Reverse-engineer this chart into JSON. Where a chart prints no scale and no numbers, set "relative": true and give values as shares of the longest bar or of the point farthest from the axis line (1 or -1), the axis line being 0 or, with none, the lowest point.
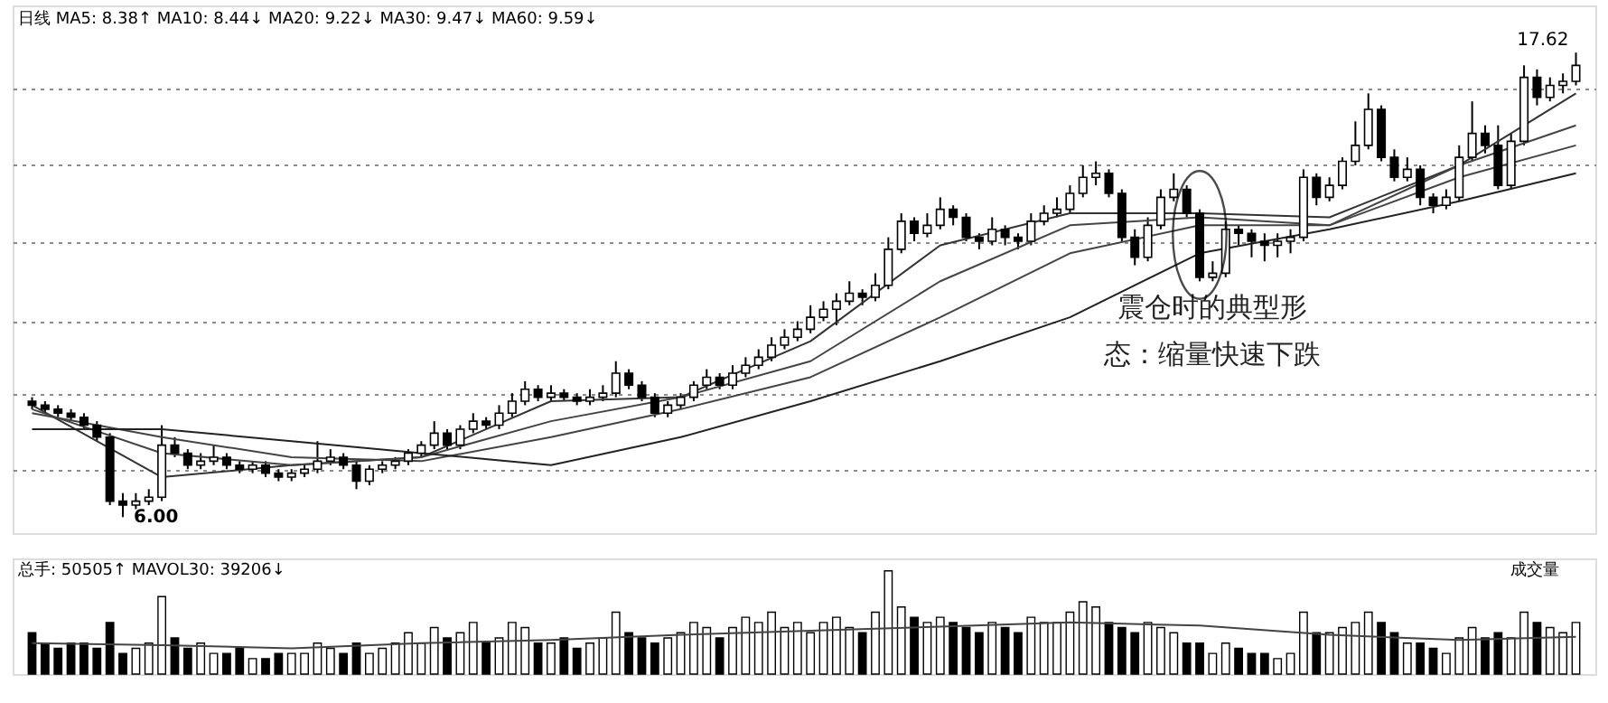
{
  "chart_data": [
    {
      "type": "candlestick",
      "color": "#000000",
      "categories": [
        null,
        null,
        null,
        null,
        null,
        null,
        null,
        null,
        null,
        null,
        null,
        null,
        null,
        null,
        null,
        null,
        null,
        null,
        null,
        null,
        null,
        null,
        null,
        null,
        null,
        null,
        null,
        null,
        null,
        null,
        null,
        null,
        null,
        null,
        null,
        null,
        null,
        null,
        null,
        null,
        null,
        null,
        null,
        null,
        null,
        null,
        null,
        null,
        null,
        null,
        null,
        null,
        null,
        null,
        null,
        null,
        null,
        null,
        null,
        null,
        null,
        null,
        null,
        null,
        null,
        null,
        null,
        null,
        null,
        null,
        null,
        null,
        null,
        null,
        null,
        null,
        null,
        null,
        null,
        null,
        null,
        null,
        null,
        null,
        null,
        null,
        null,
        null,
        null,
        null,
        null,
        null,
        null,
        null,
        null,
        null,
        null,
        null,
        null,
        null,
        null,
        null,
        null,
        null,
        null,
        null,
        null,
        null,
        null,
        null,
        null,
        null,
        null,
        null,
        null,
        null,
        null,
        null,
        null,
        null
      ],
      "ohlc": [
        [
          8.9,
          9.0,
          8.7,
          8.8
        ],
        [
          8.8,
          8.9,
          8.6,
          8.7
        ],
        [
          8.7,
          8.8,
          8.5,
          8.6
        ],
        [
          8.6,
          8.7,
          8.4,
          8.5
        ],
        [
          8.5,
          8.6,
          8.2,
          8.3
        ],
        [
          8.3,
          8.4,
          7.9,
          8.0
        ],
        [
          8.0,
          8.1,
          6.3,
          6.4
        ],
        [
          6.4,
          6.6,
          6.0,
          6.3
        ],
        [
          6.3,
          6.6,
          6.2,
          6.4
        ],
        [
          6.4,
          6.7,
          6.3,
          6.5
        ],
        [
          6.5,
          8.3,
          6.4,
          7.8
        ],
        [
          7.8,
          8.0,
          7.5,
          7.6
        ],
        [
          7.6,
          7.7,
          7.2,
          7.3
        ],
        [
          7.3,
          7.6,
          7.2,
          7.4
        ],
        [
          7.4,
          7.8,
          7.3,
          7.5
        ],
        [
          7.5,
          7.6,
          7.2,
          7.3
        ],
        [
          7.3,
          7.4,
          7.1,
          7.2
        ],
        [
          7.2,
          7.4,
          7.1,
          7.3
        ],
        [
          7.3,
          7.4,
          7.0,
          7.1
        ],
        [
          7.1,
          7.2,
          6.9,
          7.0
        ],
        [
          7.0,
          7.2,
          6.9,
          7.1
        ],
        [
          7.1,
          7.3,
          7.0,
          7.2
        ],
        [
          7.2,
          7.9,
          7.1,
          7.4
        ],
        [
          7.4,
          7.7,
          7.3,
          7.5
        ],
        [
          7.5,
          7.6,
          7.2,
          7.3
        ],
        [
          7.3,
          7.4,
          6.7,
          6.9
        ],
        [
          6.9,
          7.3,
          6.8,
          7.2
        ],
        [
          7.2,
          7.4,
          7.1,
          7.3
        ],
        [
          7.3,
          7.5,
          7.2,
          7.4
        ],
        [
          7.4,
          7.7,
          7.3,
          7.6
        ],
        [
          7.6,
          7.9,
          7.5,
          7.8
        ],
        [
          7.8,
          8.4,
          7.7,
          8.1
        ],
        [
          8.1,
          8.2,
          7.7,
          7.8
        ],
        [
          7.8,
          8.3,
          7.7,
          8.2
        ],
        [
          8.2,
          8.6,
          8.1,
          8.4
        ],
        [
          8.4,
          8.5,
          8.2,
          8.3
        ],
        [
          8.3,
          8.8,
          8.2,
          8.6
        ],
        [
          8.6,
          9.1,
          8.5,
          8.9
        ],
        [
          8.9,
          9.4,
          8.8,
          9.2
        ],
        [
          9.2,
          9.3,
          8.9,
          9.0
        ],
        [
          9.0,
          9.3,
          8.9,
          9.1
        ],
        [
          9.1,
          9.2,
          8.9,
          9.0
        ],
        [
          9.0,
          9.1,
          8.8,
          8.9
        ],
        [
          8.9,
          9.2,
          8.8,
          9.0
        ],
        [
          9.0,
          9.3,
          8.9,
          9.1
        ],
        [
          9.1,
          9.9,
          9.0,
          9.6
        ],
        [
          9.6,
          9.7,
          9.2,
          9.3
        ],
        [
          9.3,
          9.4,
          8.9,
          9.0
        ],
        [
          9.0,
          9.1,
          8.5,
          8.6
        ],
        [
          8.6,
          8.9,
          8.5,
          8.8
        ],
        [
          8.8,
          9.1,
          8.7,
          9.0
        ],
        [
          9.0,
          9.4,
          8.9,
          9.3
        ],
        [
          9.3,
          9.7,
          9.2,
          9.5
        ],
        [
          9.5,
          9.6,
          9.2,
          9.3
        ],
        [
          9.3,
          9.8,
          9.2,
          9.6
        ],
        [
          9.6,
          10.0,
          9.5,
          9.8
        ],
        [
          9.8,
          10.2,
          9.7,
          10.0
        ],
        [
          10.0,
          10.5,
          9.9,
          10.3
        ],
        [
          10.3,
          10.7,
          10.2,
          10.5
        ],
        [
          10.5,
          10.9,
          10.4,
          10.7
        ],
        [
          10.7,
          11.3,
          10.6,
          11.0
        ],
        [
          11.0,
          11.4,
          10.9,
          11.2
        ],
        [
          11.2,
          11.6,
          10.8,
          11.4
        ],
        [
          11.4,
          11.9,
          11.3,
          11.6
        ],
        [
          11.6,
          11.7,
          11.3,
          11.5
        ],
        [
          11.5,
          12.1,
          11.4,
          11.8
        ],
        [
          11.8,
          13.0,
          11.7,
          12.7
        ],
        [
          12.7,
          13.6,
          12.6,
          13.4
        ],
        [
          13.4,
          13.5,
          12.9,
          13.1
        ],
        [
          13.1,
          13.6,
          13.0,
          13.3
        ],
        [
          13.3,
          14.0,
          13.2,
          13.7
        ],
        [
          13.7,
          13.8,
          13.3,
          13.5
        ],
        [
          13.5,
          13.6,
          12.9,
          13.0
        ],
        [
          13.0,
          13.1,
          12.7,
          12.9
        ],
        [
          12.9,
          13.5,
          12.8,
          13.2
        ],
        [
          13.2,
          13.3,
          12.8,
          13.0
        ],
        [
          13.0,
          13.1,
          12.7,
          12.9
        ],
        [
          12.9,
          13.6,
          12.8,
          13.4
        ],
        [
          13.4,
          13.8,
          13.3,
          13.6
        ],
        [
          13.6,
          14.0,
          13.5,
          13.7
        ],
        [
          13.7,
          14.3,
          13.6,
          14.1
        ],
        [
          14.1,
          14.8,
          14.0,
          14.5
        ],
        [
          14.5,
          14.9,
          14.3,
          14.6
        ],
        [
          14.6,
          14.7,
          14.0,
          14.1
        ],
        [
          14.1,
          14.2,
          12.9,
          13.0
        ],
        [
          13.0,
          13.2,
          12.3,
          12.5
        ],
        [
          12.5,
          13.5,
          12.4,
          13.3
        ],
        [
          13.3,
          14.2,
          13.2,
          14.0
        ],
        [
          14.0,
          14.6,
          13.9,
          14.2
        ],
        [
          14.2,
          14.3,
          13.5,
          13.6
        ],
        [
          13.6,
          13.7,
          11.9,
          12.0
        ],
        [
          12.0,
          12.4,
          11.9,
          12.1
        ],
        [
          12.1,
          13.4,
          12.0,
          13.2
        ],
        [
          13.2,
          13.3,
          12.8,
          13.1
        ],
        [
          13.1,
          13.2,
          12.5,
          12.9
        ],
        [
          12.9,
          13.1,
          12.4,
          12.8
        ],
        [
          12.8,
          13.1,
          12.5,
          12.9
        ],
        [
          12.9,
          13.2,
          12.6,
          13.0
        ],
        [
          13.0,
          14.7,
          12.9,
          14.5
        ],
        [
          14.5,
          14.6,
          13.8,
          14.0
        ],
        [
          14.0,
          14.5,
          13.9,
          14.3
        ],
        [
          14.3,
          15.0,
          14.2,
          14.9
        ],
        [
          14.9,
          15.9,
          14.8,
          15.3
        ],
        [
          15.3,
          16.6,
          15.2,
          16.2
        ],
        [
          16.2,
          16.3,
          14.9,
          15.0
        ],
        [
          15.0,
          15.2,
          14.4,
          14.5
        ],
        [
          14.5,
          15.0,
          14.4,
          14.7
        ],
        [
          14.7,
          14.8,
          13.8,
          14.0
        ],
        [
          14.0,
          14.1,
          13.6,
          13.8
        ],
        [
          13.8,
          14.2,
          13.7,
          14.0
        ],
        [
          14.0,
          15.3,
          13.9,
          15.0
        ],
        [
          15.0,
          16.4,
          14.9,
          15.6
        ],
        [
          15.6,
          15.8,
          15.1,
          15.3
        ],
        [
          15.3,
          15.8,
          14.2,
          14.3
        ],
        [
          14.3,
          15.6,
          14.2,
          15.4
        ],
        [
          15.4,
          17.3,
          15.3,
          17.0
        ],
        [
          17.0,
          17.2,
          16.3,
          16.5
        ],
        [
          16.5,
          17.0,
          16.4,
          16.8
        ],
        [
          16.8,
          17.1,
          16.6,
          16.9
        ],
        [
          16.9,
          17.62,
          16.8,
          17.3
        ]
      ],
      "series": [
        {
          "type": "line",
          "color": "#333333",
          "values": [
            8.8,
            null,
            null,
            null,
            null,
            null,
            null,
            null,
            null,
            null,
            7.0,
            null,
            null,
            null,
            null,
            null,
            null,
            null,
            null,
            null,
            7.3,
            null,
            null,
            null,
            null,
            null,
            null,
            null,
            null,
            null,
            7.5,
            null,
            null,
            null,
            null,
            null,
            null,
            null,
            null,
            null,
            8.9,
            null,
            null,
            null,
            null,
            null,
            null,
            null,
            null,
            null,
            9.0,
            null,
            null,
            null,
            null,
            null,
            null,
            null,
            null,
            null,
            10.4,
            null,
            null,
            null,
            null,
            null,
            null,
            null,
            null,
            null,
            12.8,
            null,
            null,
            null,
            null,
            null,
            null,
            null,
            null,
            null,
            13.6,
            null,
            null,
            null,
            null,
            null,
            null,
            null,
            null,
            null,
            13.6,
            null,
            null,
            null,
            null,
            null,
            null,
            null,
            null,
            null,
            13.5,
            null,
            null,
            null,
            null,
            null,
            null,
            null,
            null,
            null,
            14.8,
            null,
            null,
            null,
            null,
            null,
            null,
            null,
            null,
            16.6
          ]
        },
        {
          "type": "line",
          "color": "#444444",
          "values": [
            8.7,
            null,
            null,
            null,
            null,
            null,
            null,
            null,
            null,
            null,
            7.6,
            null,
            null,
            null,
            null,
            null,
            null,
            null,
            null,
            null,
            7.3,
            null,
            null,
            null,
            null,
            null,
            null,
            null,
            null,
            null,
            7.5,
            null,
            null,
            null,
            null,
            null,
            null,
            null,
            null,
            null,
            8.4,
            null,
            null,
            null,
            null,
            null,
            null,
            null,
            null,
            null,
            9.0,
            null,
            null,
            null,
            null,
            null,
            null,
            null,
            null,
            null,
            9.9,
            null,
            null,
            null,
            null,
            null,
            null,
            null,
            null,
            null,
            11.9,
            null,
            null,
            null,
            null,
            null,
            null,
            null,
            null,
            null,
            13.3,
            null,
            null,
            null,
            null,
            null,
            null,
            null,
            null,
            null,
            13.5,
            null,
            null,
            null,
            null,
            null,
            null,
            null,
            null,
            null,
            13.3,
            null,
            null,
            null,
            null,
            null,
            null,
            null,
            null,
            null,
            14.8,
            null,
            null,
            null,
            null,
            null,
            null,
            null,
            null,
            15.8
          ]
        },
        {
          "type": "line",
          "color": "#444444",
          "values": [
            8.6,
            null,
            null,
            null,
            null,
            null,
            null,
            null,
            null,
            null,
            8.0,
            null,
            null,
            null,
            null,
            null,
            null,
            null,
            null,
            null,
            7.5,
            null,
            null,
            null,
            null,
            null,
            null,
            null,
            null,
            null,
            7.4,
            null,
            null,
            null,
            null,
            null,
            null,
            null,
            null,
            null,
            8.0,
            null,
            null,
            null,
            null,
            null,
            null,
            null,
            null,
            null,
            8.7,
            null,
            null,
            null,
            null,
            null,
            null,
            null,
            null,
            null,
            9.5,
            null,
            null,
            null,
            null,
            null,
            null,
            null,
            null,
            null,
            11.0,
            null,
            null,
            null,
            null,
            null,
            null,
            null,
            null,
            null,
            12.6,
            null,
            null,
            null,
            null,
            null,
            null,
            null,
            null,
            null,
            13.3,
            null,
            null,
            null,
            null,
            null,
            null,
            null,
            null,
            null,
            13.3,
            null,
            null,
            null,
            null,
            null,
            null,
            null,
            null,
            null,
            14.5,
            null,
            null,
            null,
            null,
            null,
            null,
            null,
            null,
            15.3
          ]
        },
        {
          "type": "line",
          "color": "#222222",
          "values": [
            8.2,
            null,
            null,
            null,
            null,
            null,
            null,
            null,
            null,
            null,
            8.2,
            null,
            null,
            null,
            null,
            null,
            null,
            null,
            null,
            null,
            7.9,
            null,
            null,
            null,
            null,
            null,
            null,
            null,
            null,
            null,
            7.6,
            null,
            null,
            null,
            null,
            null,
            null,
            null,
            null,
            null,
            7.3,
            null,
            null,
            null,
            null,
            null,
            null,
            null,
            null,
            null,
            8.0,
            null,
            null,
            null,
            null,
            null,
            null,
            null,
            null,
            null,
            8.9,
            null,
            null,
            null,
            null,
            null,
            null,
            null,
            null,
            null,
            9.9,
            null,
            null,
            null,
            null,
            null,
            null,
            null,
            null,
            null,
            11.0,
            null,
            null,
            null,
            null,
            null,
            null,
            null,
            null,
            null,
            12.6,
            null,
            null,
            null,
            null,
            null,
            null,
            null,
            null,
            null,
            13.2,
            null,
            null,
            null,
            null,
            null,
            null,
            null,
            null,
            null,
            13.9,
            null,
            null,
            null,
            null,
            null,
            null,
            null,
            null,
            14.6
          ]
        }
      ],
      "ylim": [
        5.6,
        18.8
      ],
      "yticks": [
        {
          "value": 7.2,
          "label": null
        },
        {
          "value": 9.1,
          "label": null
        },
        {
          "value": 10.9,
          "label": null
        },
        {
          "value": 12.9,
          "label": null
        },
        {
          "value": 14.8,
          "label": null
        },
        {
          "value": 16.7,
          "label": null
        }
      ],
      "grid": "y",
      "tick_labels": false,
      "annotations": [
        "日线",
        "MA5: 8.38↑  MA10: 8.44↓  MA20: 9.22↓  MA30: 9.47↓  MA60: 9.59↓",
        "17.62",
        "6.00",
        "震仓时的典型形态：缩量快速下跌"
      ]
    },
    {
      "type": "bar",
      "relative": true,
      "categories": [
        null,
        null,
        null,
        null,
        null,
        null,
        null,
        null,
        null,
        null,
        null,
        null,
        null,
        null,
        null,
        null,
        null,
        null,
        null,
        null,
        null,
        null,
        null,
        null,
        null,
        null,
        null,
        null,
        null,
        null,
        null,
        null,
        null,
        null,
        null,
        null,
        null,
        null,
        null,
        null,
        null,
        null,
        null,
        null,
        null,
        null,
        null,
        null,
        null,
        null,
        null,
        null,
        null,
        null,
        null,
        null,
        null,
        null,
        null,
        null,
        null,
        null,
        null,
        null,
        null,
        null,
        null,
        null,
        null,
        null,
        null,
        null,
        null,
        null,
        null,
        null,
        null,
        null,
        null,
        null,
        null,
        null,
        null,
        null,
        null,
        null,
        null,
        null,
        null,
        null,
        null,
        null,
        null,
        null,
        null,
        null,
        null,
        null,
        null,
        null,
        null,
        null,
        null,
        null,
        null,
        null,
        null,
        null,
        null,
        null,
        null,
        null,
        null,
        null,
        null,
        null,
        null,
        null,
        null,
        null
      ],
      "tick_labels": false,
      "series": [
        {
          "type": "bar",
          "values": [
            0.4,
            0.3,
            0.25,
            0.3,
            0.3,
            0.25,
            0.5,
            0.2,
            0.25,
            0.3,
            0.75,
            0.35,
            0.25,
            0.3,
            0.2,
            0.2,
            0.25,
            0.15,
            0.15,
            0.2,
            0.2,
            0.2,
            0.3,
            0.25,
            0.2,
            0.3,
            0.2,
            0.25,
            0.3,
            0.4,
            0.3,
            0.45,
            0.35,
            0.4,
            0.5,
            0.3,
            0.35,
            0.5,
            0.45,
            0.3,
            0.3,
            0.35,
            0.25,
            0.3,
            0.35,
            0.6,
            0.4,
            0.35,
            0.3,
            0.35,
            0.4,
            0.5,
            0.45,
            0.35,
            0.45,
            0.55,
            0.5,
            0.6,
            0.45,
            0.5,
            0.4,
            0.5,
            0.55,
            0.45,
            0.4,
            0.6,
            1.0,
            0.65,
            0.55,
            0.5,
            0.55,
            0.5,
            0.45,
            0.4,
            0.5,
            0.45,
            0.4,
            0.55,
            0.5,
            0.5,
            0.6,
            0.7,
            0.65,
            0.5,
            0.45,
            0.4,
            0.5,
            0.45,
            0.4,
            0.3,
            0.3,
            0.2,
            0.3,
            0.25,
            0.2,
            0.2,
            0.15,
            0.2,
            0.6,
            0.4,
            0.4,
            0.45,
            0.5,
            0.6,
            0.5,
            0.4,
            0.3,
            0.3,
            0.25,
            0.2,
            0.35,
            0.45,
            0.35,
            0.4,
            0.35,
            0.6,
            0.5,
            0.45,
            0.4,
            0.5
          ],
          "colors": [
            "#000000",
            "#000000",
            "#000000",
            "#000000",
            "#000000",
            "#000000",
            "#000000",
            "#000000",
            "#ffffff",
            "#ffffff",
            "#ffffff",
            "#000000",
            "#000000",
            "#ffffff",
            "#ffffff",
            "#000000",
            "#000000",
            "#ffffff",
            "#000000",
            "#000000",
            "#ffffff",
            "#ffffff",
            "#ffffff",
            "#ffffff",
            "#000000",
            "#000000",
            "#ffffff",
            "#ffffff",
            "#ffffff",
            "#ffffff",
            "#ffffff",
            "#ffffff",
            "#000000",
            "#ffffff",
            "#ffffff",
            "#000000",
            "#ffffff",
            "#ffffff",
            "#ffffff",
            "#000000",
            "#ffffff",
            "#000000",
            "#000000",
            "#ffffff",
            "#ffffff",
            "#ffffff",
            "#000000",
            "#000000",
            "#000000",
            "#ffffff",
            "#ffffff",
            "#ffffff",
            "#ffffff",
            "#000000",
            "#ffffff",
            "#ffffff",
            "#ffffff",
            "#ffffff",
            "#ffffff",
            "#ffffff",
            "#ffffff",
            "#ffffff",
            "#ffffff",
            "#ffffff",
            "#000000",
            "#ffffff",
            "#ffffff",
            "#ffffff",
            "#000000",
            "#ffffff",
            "#ffffff",
            "#000000",
            "#000000",
            "#000000",
            "#ffffff",
            "#000000",
            "#000000",
            "#ffffff",
            "#ffffff",
            "#ffffff",
            "#ffffff",
            "#ffffff",
            "#ffffff",
            "#000000",
            "#000000",
            "#000000",
            "#ffffff",
            "#ffffff",
            "#ffffff",
            "#000000",
            "#000000",
            "#ffffff",
            "#ffffff",
            "#000000",
            "#000000",
            "#000000",
            "#ffffff",
            "#ffffff",
            "#ffffff",
            "#000000",
            "#ffffff",
            "#ffffff",
            "#ffffff",
            "#ffffff",
            "#000000",
            "#000000",
            "#ffffff",
            "#000000",
            "#000000",
            "#ffffff",
            "#ffffff",
            "#ffffff",
            "#000000",
            "#000000",
            "#ffffff",
            "#ffffff",
            "#000000",
            "#ffffff",
            "#ffffff",
            "#ffffff"
          ]
        },
        {
          "type": "line",
          "color": "#444444",
          "values": [
            0.3,
            null,
            null,
            null,
            null,
            null,
            null,
            null,
            null,
            null,
            0.28,
            null,
            null,
            null,
            null,
            null,
            null,
            null,
            null,
            null,
            0.25,
            null,
            null,
            null,
            null,
            null,
            null,
            null,
            null,
            null,
            0.3,
            null,
            null,
            null,
            null,
            null,
            null,
            null,
            null,
            null,
            0.33,
            null,
            null,
            null,
            null,
            null,
            null,
            null,
            null,
            null,
            0.38,
            null,
            null,
            null,
            null,
            null,
            null,
            null,
            null,
            null,
            0.42,
            null,
            null,
            null,
            null,
            null,
            null,
            null,
            null,
            null,
            0.46,
            null,
            null,
            null,
            null,
            null,
            null,
            null,
            null,
            null,
            0.5,
            null,
            null,
            null,
            null,
            null,
            null,
            null,
            null,
            null,
            0.47,
            null,
            null,
            null,
            null,
            null,
            null,
            null,
            null,
            null,
            0.38,
            null,
            null,
            null,
            null,
            null,
            null,
            null,
            null,
            null,
            0.33,
            null,
            null,
            null,
            null,
            null,
            null,
            null,
            null,
            0.36
          ]
        }
      ],
      "annotations": [
        "总手: 50505↑  MAVOL30: 39206↓",
        "成交量"
      ]
    }
  ]
}
